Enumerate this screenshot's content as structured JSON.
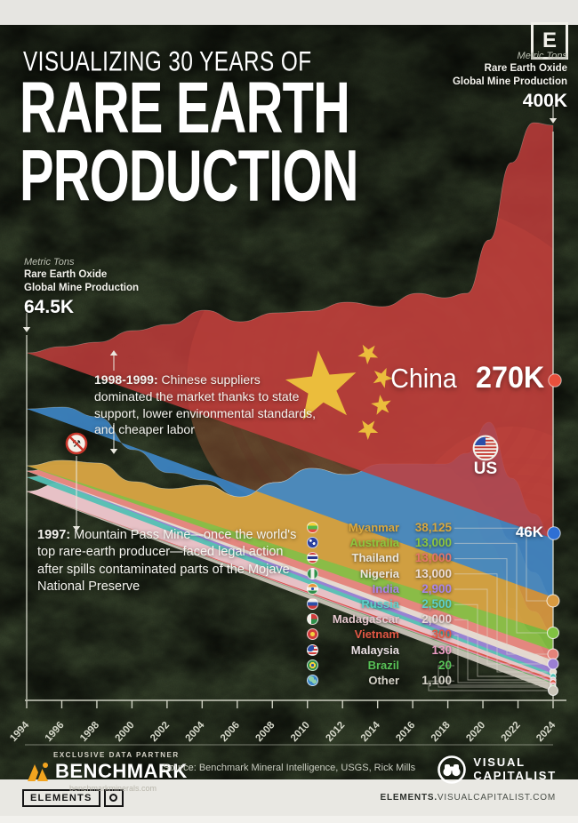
{
  "header": {
    "kicker": "VISUALIZING 30 YEARS OF",
    "title_line1": "RARE EARTH",
    "title_line2": "PRODUCTION",
    "badge": "E"
  },
  "axis_right": {
    "unit": "Metric Tons",
    "desc1": "Rare Earth Oxide",
    "desc2": "Global Mine Production",
    "value": "400K"
  },
  "axis_left": {
    "unit": "Metric Tons",
    "desc1": "Rare Earth Oxide",
    "desc2": "Global Mine Production",
    "value": "64.5K"
  },
  "annotation_1998": {
    "lead": "1998-1999:",
    "body": " Chinese suppliers dominated the market thanks to state support, lower environmental standards, and cheaper labor"
  },
  "annotation_1997": {
    "lead": "1997:",
    "body": " Mountain Pass Mine—once the world's top rare-earth producer—faced legal action after spills contaminated parts of the Mojave National Preserve"
  },
  "callouts": {
    "china_label": "China",
    "china_value": "270K",
    "us_label": "US",
    "us_value": "46K"
  },
  "legend": {
    "items": [
      {
        "key": "myanmar",
        "name": "Myanmar",
        "value": "38,125",
        "name_color": "#d9a83f",
        "value_color": "#d9a83f"
      },
      {
        "key": "australia",
        "name": "Australia",
        "value": "13,000",
        "name_color": "#8cc63e",
        "value_color": "#8cc63e"
      },
      {
        "key": "thailand",
        "name": "Thailand",
        "value": "13,000",
        "name_color": "#eae6dd",
        "value_color": "#e4746a"
      },
      {
        "key": "nigeria",
        "name": "Nigeria",
        "value": "13,000",
        "name_color": "#eae6dd",
        "value_color": "#ecdcd6"
      },
      {
        "key": "india",
        "name": "India",
        "value": "2,900",
        "name_color": "#a985e8",
        "value_color": "#a985e8"
      },
      {
        "key": "russia",
        "name": "Russia",
        "value": "2,500",
        "name_color": "#5ecfca",
        "value_color": "#5ecfca"
      },
      {
        "key": "madagascar",
        "name": "Madagascar",
        "value": "2,000",
        "name_color": "#e6c9cf",
        "value_color": "#e8d6d6"
      },
      {
        "key": "vietnam",
        "name": "Vietnam",
        "value": "300",
        "name_color": "#e25845",
        "value_color": "#e25845"
      },
      {
        "key": "malaysia",
        "name": "Malaysia",
        "value": "130",
        "name_color": "#e9dfe2",
        "value_color": "#ec9ec4"
      },
      {
        "key": "brazil",
        "name": "Brazil",
        "value": "20",
        "name_color": "#58c257",
        "value_color": "#58c257"
      },
      {
        "key": "other",
        "name": "Other",
        "value": "1,100",
        "name_color": "#d6d3c8",
        "value_color": "#d6d3c8"
      }
    ]
  },
  "x_axis": {
    "ticks": [
      "1994",
      "1996",
      "1998",
      "2000",
      "2002",
      "2004",
      "2006",
      "2008",
      "2010",
      "2012",
      "2014",
      "2016",
      "2018",
      "2020",
      "2022",
      "2024"
    ]
  },
  "footer": {
    "partner_label": "EXCLUSIVE DATA PARTNER",
    "partner_name": "BENCHMARK",
    "partner_url": "benchmarkminerals.com",
    "source": "Source: Benchmark Mineral Intelligence, USGS, Rick Mills",
    "vc_top": "VISUAL",
    "vc_bottom": "CAPITALIST"
  },
  "bottom_bar": {
    "brand": "ELEMENTS",
    "site_bold": "ELEMENTS.",
    "site_rest": "VISUALCAPITALIST.COM"
  },
  "chart_data": {
    "type": "area",
    "variant": "stacked-streamgraph",
    "title": "Rare earth oxide global mine production, 1994-2024",
    "unit": "metric tons (REO)",
    "x": [
      "1994",
      "1996",
      "1998",
      "2000",
      "2002",
      "2004",
      "2006",
      "2008",
      "2010",
      "2012",
      "2014",
      "2016",
      "2018",
      "2020",
      "2022",
      "2024"
    ],
    "labeled_points": {
      "total_1994": 64500,
      "total_2024": 400000,
      "china_2024": 270000,
      "us_2024": 46000
    },
    "series_2024": [
      {
        "key": "china",
        "name": "China",
        "value": 270000,
        "color": "#c23d3c"
      },
      {
        "key": "us",
        "name": "US",
        "value": 46000,
        "color": "#3d86c8"
      },
      {
        "key": "myanmar",
        "name": "Myanmar",
        "value": 38125,
        "color": "#d99b41"
      },
      {
        "key": "australia",
        "name": "Australia",
        "value": 13000,
        "color": "#80c241"
      },
      {
        "key": "thailand",
        "name": "Thailand",
        "value": 13000,
        "color": "#e4837a"
      },
      {
        "key": "nigeria",
        "name": "Nigeria",
        "value": 13000,
        "color": "#e9ddd0"
      },
      {
        "key": "india",
        "name": "India",
        "value": 2900,
        "color": "#9b7fd4"
      },
      {
        "key": "russia",
        "name": "Russia",
        "value": 2500,
        "color": "#54c0b4"
      },
      {
        "key": "madagascar",
        "name": "Madagascar",
        "value": 2000,
        "color": "#e8c7cd"
      },
      {
        "key": "vietnam",
        "name": "Vietnam",
        "value": 300,
        "color": "#d95040"
      },
      {
        "key": "malaysia",
        "name": "Malaysia",
        "value": 130,
        "color": "#e591b4"
      },
      {
        "key": "brazil",
        "name": "Brazil",
        "value": 20,
        "color": "#4fae52"
      },
      {
        "key": "other",
        "name": "Other",
        "value": 1100,
        "color": "#c9c4b8"
      }
    ],
    "annotations": [
      "1998-1999: Chinese suppliers dominated the market thanks to state support, lower environmental standards, and cheaper labor",
      "1997: Mountain Pass Mine—once the world's top rare-earth producer—faced legal action after spills contaminated parts of the Mojave National Preserve"
    ],
    "legend_position": "center-right",
    "grid": false
  }
}
